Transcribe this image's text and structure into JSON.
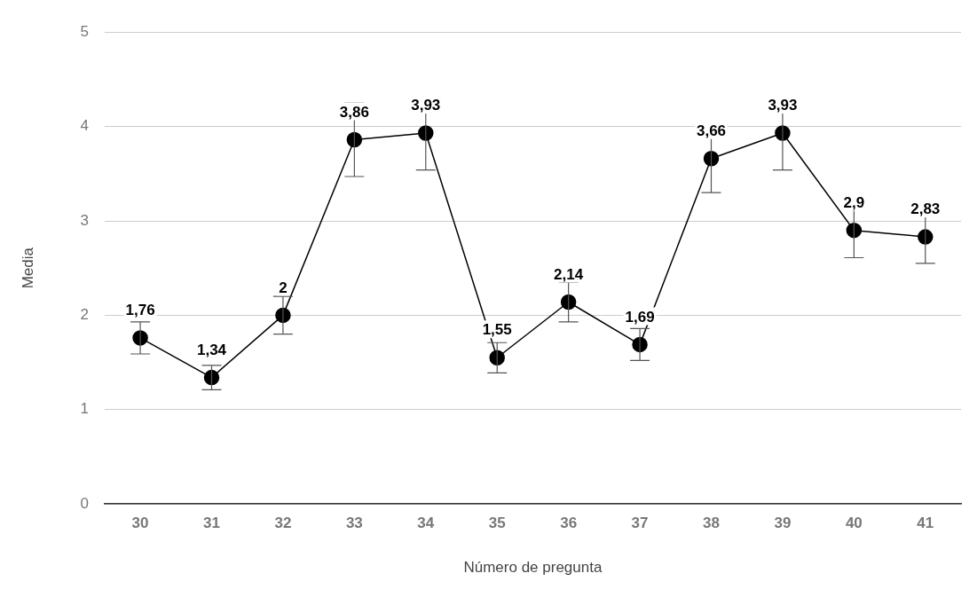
{
  "chart_data": {
    "type": "line",
    "xlabel": "Número de pregunta",
    "ylabel": "Media",
    "categories": [
      "30",
      "31",
      "32",
      "33",
      "34",
      "35",
      "36",
      "37",
      "38",
      "39",
      "40",
      "41"
    ],
    "series": [
      {
        "color": "#000000",
        "values": [
          1.76,
          1.34,
          2,
          3.86,
          3.93,
          1.55,
          2.14,
          1.69,
          3.66,
          3.93,
          2.9,
          2.83
        ],
        "errors": [
          0.17,
          0.13,
          0.2,
          0.39,
          0.39,
          0.16,
          0.21,
          0.17,
          0.36,
          0.39,
          0.29,
          0.28
        ],
        "value_labels": [
          "1,76",
          "1,34",
          "2",
          "3,86",
          "3,93",
          "1,55",
          "2,14",
          "1,69",
          "3,66",
          "3,93",
          "2,9",
          "2,83"
        ]
      }
    ],
    "ylim": [
      0,
      5
    ],
    "yticks": [
      0,
      1,
      2,
      3,
      4,
      5
    ],
    "grid": "y",
    "legend": false,
    "marker": "circle",
    "line_style": "solid"
  }
}
